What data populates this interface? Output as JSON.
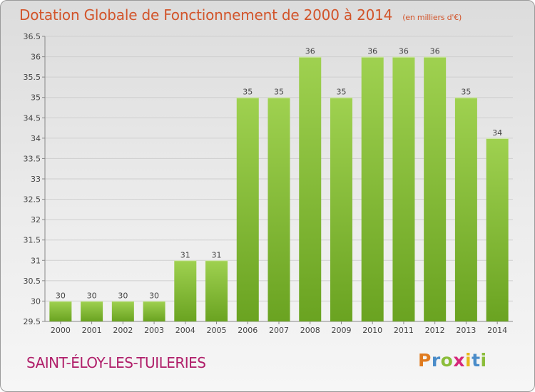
{
  "title": "Dotation Globale de Fonctionnement de 2000 à 2014",
  "subtitle": "(en milliers d'€)",
  "commune": "SAINT-ÉLOY-LES-TUILERIES",
  "logo": {
    "letters": [
      "P",
      "r",
      "o",
      "x",
      "i",
      "t",
      "i"
    ],
    "colors": [
      "#e07b1f",
      "#4a8cc9",
      "#8bbd3a",
      "#d6287a",
      "#e8b81a",
      "#4a8cc9",
      "#8bbd3a"
    ]
  },
  "colors": {
    "bar_light": "#9fd150",
    "bar_dark": "#6aa321",
    "grid": "#cfcfcf",
    "title": "#d2542a",
    "commune": "#b01f6a"
  },
  "chart_data": {
    "type": "bar",
    "categories": [
      "2000",
      "2001",
      "2002",
      "2003",
      "2004",
      "2005",
      "2006",
      "2007",
      "2008",
      "2009",
      "2010",
      "2011",
      "2012",
      "2013",
      "2014"
    ],
    "values": [
      30,
      30,
      30,
      30,
      31,
      31,
      35,
      35,
      36,
      35,
      36,
      36,
      36,
      35,
      34
    ],
    "ylim": [
      29.5,
      36.5
    ],
    "yticks": [
      "29.5",
      "30",
      "30.5",
      "31",
      "31.5",
      "32",
      "32.5",
      "33",
      "33.5",
      "34",
      "34.5",
      "35",
      "35.5",
      "36",
      "36.5"
    ],
    "grid": true
  }
}
